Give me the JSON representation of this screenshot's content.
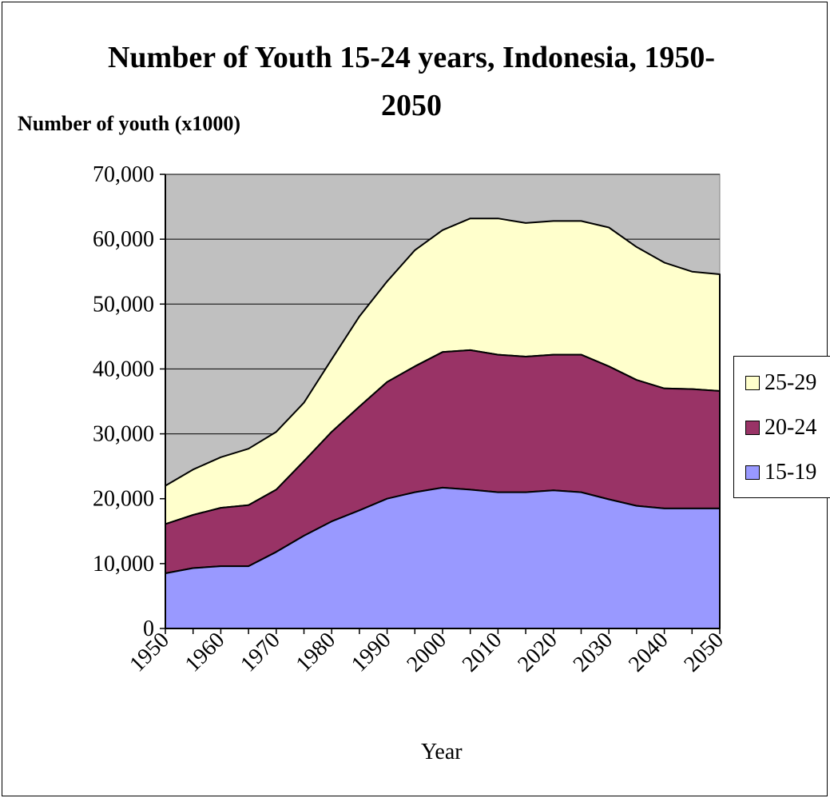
{
  "chart_data": {
    "type": "area",
    "stacked": true,
    "title": "Number of Youth 15-24 years, Indonesia, 1950-2050",
    "ylabel": "Number of youth (x1000)",
    "xlabel": "Year",
    "ylim": [
      0,
      70000
    ],
    "yticks": [
      0,
      10000,
      20000,
      30000,
      40000,
      50000,
      60000,
      70000
    ],
    "ytick_labels": [
      "0",
      "10,000",
      "20,000",
      "30,000",
      "40,000",
      "50,000",
      "60,000",
      "70,000"
    ],
    "x": [
      1950,
      1955,
      1960,
      1965,
      1970,
      1975,
      1980,
      1985,
      1990,
      1995,
      2000,
      2005,
      2010,
      2015,
      2020,
      2025,
      2030,
      2035,
      2040,
      2045,
      2050
    ],
    "xtick_labels": [
      "1950",
      "1960",
      "1970",
      "1980",
      "1990",
      "2000",
      "2010",
      "2020",
      "2030",
      "2040",
      "2050"
    ],
    "grid": "horizontal",
    "plot_background": "#c0c0c0",
    "legend_position": "right",
    "series": [
      {
        "name": "15-19",
        "color": "#9999ff",
        "values": [
          8500,
          9300,
          9600,
          9600,
          11800,
          14300,
          16500,
          18200,
          20000,
          21000,
          21700,
          21400,
          21000,
          21000,
          21300,
          21000,
          19900,
          18900,
          18500,
          18500,
          18500
        ]
      },
      {
        "name": "20-24",
        "color": "#993366",
        "values": [
          7600,
          8200,
          9000,
          9400,
          9600,
          11500,
          13800,
          16000,
          18000,
          19400,
          20900,
          21500,
          21200,
          20900,
          20900,
          21200,
          20500,
          19400,
          18500,
          18400,
          18100
        ]
      },
      {
        "name": "25-29",
        "color": "#ffffcc",
        "values": [
          5900,
          7000,
          7800,
          8700,
          8900,
          9000,
          11200,
          13900,
          15500,
          17900,
          18800,
          20300,
          21000,
          20600,
          20600,
          20600,
          21400,
          20500,
          19400,
          18100,
          18000
        ]
      }
    ]
  }
}
